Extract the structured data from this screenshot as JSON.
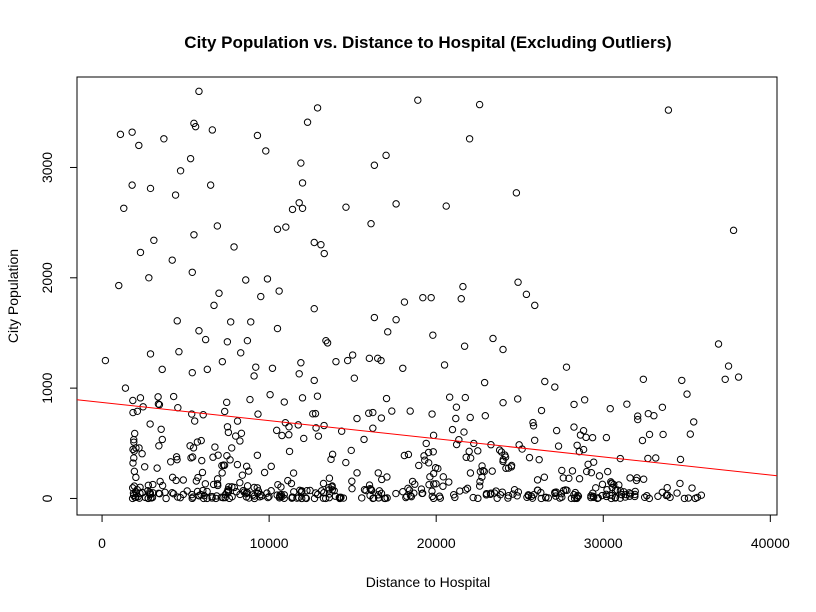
{
  "chart_data": {
    "type": "scatter",
    "title": "City Population vs. Distance to Hospital (Excluding Outliers)",
    "xlabel": "Distance to Hospital",
    "ylabel": "City Population",
    "xlim": [
      -1500,
      40400
    ],
    "ylim": [
      -150,
      3820
    ],
    "x_ticks": [
      0,
      10000,
      20000,
      30000,
      40000
    ],
    "x_tick_labels": [
      "0",
      "10000",
      "20000",
      "30000",
      "40000"
    ],
    "y_ticks": [
      0,
      1000,
      2000,
      3000
    ],
    "y_tick_labels": [
      "0",
      "1000",
      "2000",
      "3000"
    ],
    "grid": false,
    "point_color": "#000000",
    "trend_color": "#ff0000",
    "trend_line": {
      "intercept": 870,
      "slope": -0.01645
    },
    "series": [
      {
        "x": [
          5800,
          12900,
          18900,
          22600,
          33900,
          1100,
          1800,
          5500,
          5600,
          9300,
          9800,
          12300,
          2200,
          6600,
          3700,
          4700,
          5300,
          11900,
          12000,
          16300,
          17000,
          22000,
          1300,
          2900,
          4400,
          6500,
          11000,
          11800,
          24800,
          5500,
          10500,
          12700,
          14600,
          16100,
          1000,
          13300,
          17600,
          20600,
          3100,
          1800,
          5400,
          2300,
          2800,
          4200,
          6900,
          7900,
          8600,
          11400,
          12000,
          13100,
          16300,
          19200,
          21700,
          37800,
          4500,
          6700,
          5800,
          7700,
          9500,
          18100,
          9200,
          3600,
          7000,
          6200,
          8900,
          9900,
          10600,
          4600,
          12700,
          13400,
          14700,
          17600,
          19700,
          21600,
          23400,
          24900,
          25400,
          25900,
          36900,
          37500,
          38100,
          1400,
          2900,
          7500,
          8700,
          10500,
          11800,
          16000,
          17100,
          19800,
          21500,
          24000,
          26500,
          27800,
          32400,
          200,
          14000,
          13500,
          15000,
          16500,
          18000,
          7200,
          8300,
          6300,
          5400,
          9100,
          10200,
          11900,
          12700,
          15100,
          16700,
          20500,
          22900,
          27100,
          34700,
          37300
        ],
        "y": [
          3690,
          3540,
          3610,
          3570,
          3520,
          3300,
          3320,
          3400,
          3370,
          3290,
          3150,
          3410,
          3200,
          3340,
          3260,
          2970,
          3080,
          3040,
          2860,
          3020,
          3110,
          3260,
          2630,
          2810,
          2750,
          2840,
          2460,
          2680,
          2770,
          2390,
          2440,
          2320,
          2640,
          2490,
          1930,
          2220,
          2670,
          2650,
          2340,
          2840,
          2050,
          2230,
          2000,
          2160,
          2470,
          2280,
          1980,
          2620,
          2630,
          2300,
          1640,
          1820,
          1380,
          2430,
          1610,
          1750,
          1520,
          1600,
          1830,
          1780,
          1190,
          1170,
          1860,
          1440,
          1600,
          1990,
          1880,
          1330,
          1720,
          1430,
          1250,
          1620,
          1820,
          1920,
          1450,
          1960,
          1850,
          1750,
          1400,
          1200,
          1100,
          1000,
          1310,
          1420,
          1430,
          1540,
          1130,
          1270,
          1510,
          1480,
          1810,
          1350,
          1060,
          1190,
          1080,
          1250,
          1240,
          1410,
          1300,
          1270,
          1180,
          1240,
          1320,
          1170,
          1140,
          1110,
          1180,
          1230,
          1070,
          1090,
          1250,
          1210,
          1050,
          1010,
          1070,
          1080
        ],
        "note_series": "scatter"
      }
    ]
  }
}
